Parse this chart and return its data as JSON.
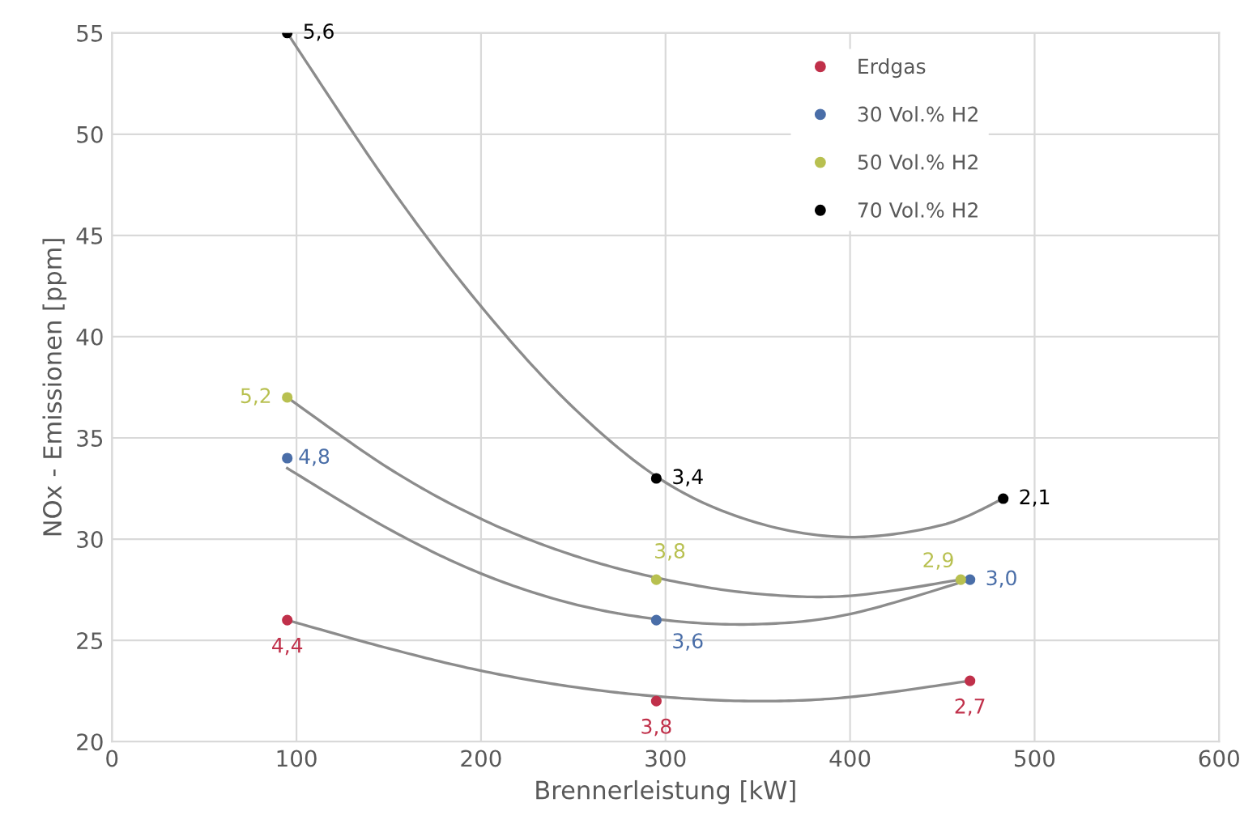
{
  "chart_data": {
    "type": "scatter",
    "xlabel": "Brennerleistung [kW]",
    "ylabel": "NOx - Emissionen [ppm]",
    "xlim": [
      0,
      600
    ],
    "xticks": [
      0,
      100,
      200,
      300,
      400,
      500,
      600
    ],
    "ylim": [
      20,
      55
    ],
    "yticks": [
      20,
      25,
      30,
      35,
      40,
      45,
      50,
      55
    ],
    "grid": true,
    "legend": "top right",
    "series": [
      {
        "name": "Erdgas",
        "color": "#c0304a",
        "marker": "circle",
        "x": [
          95,
          295,
          465
        ],
        "values": [
          26,
          22,
          23
        ]
      },
      {
        "name": "30 Vol.% H2",
        "color": "#4a6ea8",
        "marker": "circle",
        "x": [
          95,
          295,
          465
        ],
        "values": [
          34,
          26,
          28
        ]
      },
      {
        "name": "50 Vol.% H2",
        "color": "#b8c050",
        "marker": "circle",
        "x": [
          95,
          295,
          460
        ],
        "values": [
          37,
          28,
          28
        ]
      },
      {
        "name": "70 Vol.% H2",
        "color": "#000000",
        "marker": "circle",
        "x": [
          95,
          295,
          483
        ],
        "values": [
          55,
          33,
          32
        ]
      },
      {
        "type": "line",
        "marker": "none",
        "color": "#8c8c8c",
        "x": [
          95,
          150,
          200,
          250,
          300,
          350,
          400,
          465
        ],
        "values": [
          26,
          24.6,
          23.5,
          22.7,
          22.2,
          22,
          22.2,
          23
        ]
      },
      {
        "type": "line",
        "marker": "none",
        "color": "#8c8c8c",
        "x": [
          95,
          150,
          200,
          250,
          300,
          350,
          400,
          465
        ],
        "values": [
          33.5,
          30.5,
          28.3,
          26.8,
          26,
          25.8,
          26.3,
          28
        ]
      },
      {
        "type": "line",
        "marker": "none",
        "color": "#8c8c8c",
        "x": [
          95,
          150,
          200,
          250,
          300,
          350,
          400,
          460
        ],
        "values": [
          37,
          33.5,
          31,
          29.2,
          28,
          27.3,
          27.2,
          28
        ]
      },
      {
        "type": "line",
        "marker": "none",
        "color": "#8c8c8c",
        "x": [
          95,
          150,
          200,
          250,
          300,
          350,
          400,
          450,
          483
        ],
        "values": [
          55,
          47.5,
          41.5,
          36.5,
          32.8,
          30.8,
          30.1,
          30.7,
          32
        ]
      }
    ],
    "annotations": [
      {
        "text": "4,4",
        "x": 95,
        "y": 26
      },
      {
        "text": "3,8",
        "x": 295,
        "y": 22
      },
      {
        "text": "2,7",
        "x": 465,
        "y": 23
      },
      {
        "text": "4,8",
        "x": 95,
        "y": 34
      },
      {
        "text": "3,6",
        "x": 295,
        "y": 26
      },
      {
        "text": "3,0",
        "x": 465,
        "y": 28
      },
      {
        "text": "5,2",
        "x": 95,
        "y": 37
      },
      {
        "text": "3,8",
        "x": 295,
        "y": 28
      },
      {
        "text": "2,9",
        "x": 460,
        "y": 28
      },
      {
        "text": "5,6",
        "x": 95,
        "y": 55
      },
      {
        "text": "3,4",
        "x": 295,
        "y": 33
      },
      {
        "text": "2,1",
        "x": 483,
        "y": 32
      }
    ]
  }
}
